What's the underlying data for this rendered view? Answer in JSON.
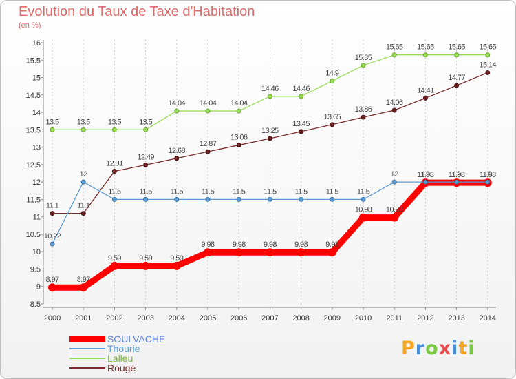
{
  "header": {
    "title": "Evolution du Taux de Taxe d'Habitation",
    "subtitle": "(en %)"
  },
  "logo": {
    "letters": [
      "P",
      "r",
      "o",
      "x",
      "i",
      "t",
      "i"
    ],
    "colors": [
      "#f5a623",
      "#4a90d9",
      "#7ac943",
      "#e94e4e",
      "#4a90d9",
      "#f5a623",
      "#7ac943"
    ]
  },
  "chart_data": {
    "type": "line",
    "title": "Evolution du Taux de Taxe d'Habitation",
    "ylabel": "(en %)",
    "xlabel": "",
    "x": [
      "2000",
      "2001",
      "2002",
      "2003",
      "2004",
      "2005",
      "2006",
      "2007",
      "2008",
      "2009",
      "2010",
      "2011",
      "2012",
      "2013",
      "2014"
    ],
    "ylim": [
      8.5,
      16
    ],
    "yticks": [
      "8.5",
      "9",
      "9.5",
      "10",
      "10.5",
      "11",
      "11.5",
      "12",
      "12.5",
      "13",
      "13.5",
      "14",
      "14.5",
      "15",
      "15.5",
      "16"
    ],
    "grid": "vertical dashed",
    "legend": "bottom-left",
    "series": [
      {
        "name": "SOULVACHE",
        "color": "#ff0000",
        "values": [
          8.97,
          8.97,
          9.59,
          9.59,
          9.59,
          9.98,
          9.98,
          9.98,
          9.98,
          9.98,
          10.98,
          10.98,
          11.98,
          11.98,
          11.98
        ],
        "labels": [
          "8.97",
          "8.97",
          "9.59",
          "9.59",
          "9.59",
          "9.98",
          "9.98",
          "9.98",
          "9.98",
          "9.98",
          "10.98",
          "10.98",
          "11.98",
          "11.98",
          "11.98"
        ]
      },
      {
        "name": "Thourie",
        "color": "#5b9bd5",
        "values": [
          10.22,
          12,
          11.5,
          11.5,
          11.5,
          11.5,
          11.5,
          11.5,
          11.5,
          11.5,
          11.5,
          12,
          12,
          12,
          12
        ],
        "labels": [
          "10.22",
          "12",
          "11.5",
          "11.5",
          "11.5",
          "11.5",
          "11.5",
          "11.5",
          "11.5",
          "11.5",
          "11.5",
          "12",
          "12",
          "12",
          "12"
        ]
      },
      {
        "name": "Lalleu",
        "color": "#99dd55",
        "values": [
          13.5,
          13.5,
          13.5,
          13.5,
          14.04,
          14.04,
          14.04,
          14.46,
          14.46,
          14.9,
          15.35,
          15.65,
          15.65,
          15.65,
          15.65
        ],
        "labels": [
          "13.5",
          "13.5",
          "13.5",
          "13.5",
          "14.04",
          "14.04",
          "14.04",
          "14.46",
          "14.46",
          "14.9",
          "15.35",
          "15.65",
          "15.65",
          "15.65",
          "15.65"
        ]
      },
      {
        "name": "Rougé",
        "color": "#7a2b2b",
        "values": [
          11.1,
          11.1,
          12.31,
          12.49,
          12.68,
          12.87,
          13.06,
          13.25,
          13.45,
          13.65,
          13.86,
          14.06,
          14.41,
          14.77,
          15.14
        ],
        "labels": [
          "11.1",
          "11.1",
          "12.31",
          "12.49",
          "12.68",
          "12.87",
          "13.06",
          "13.25",
          "13.45",
          "13.65",
          "13.86",
          "14.06",
          "14.41",
          "14.77",
          "15.14"
        ]
      }
    ]
  }
}
